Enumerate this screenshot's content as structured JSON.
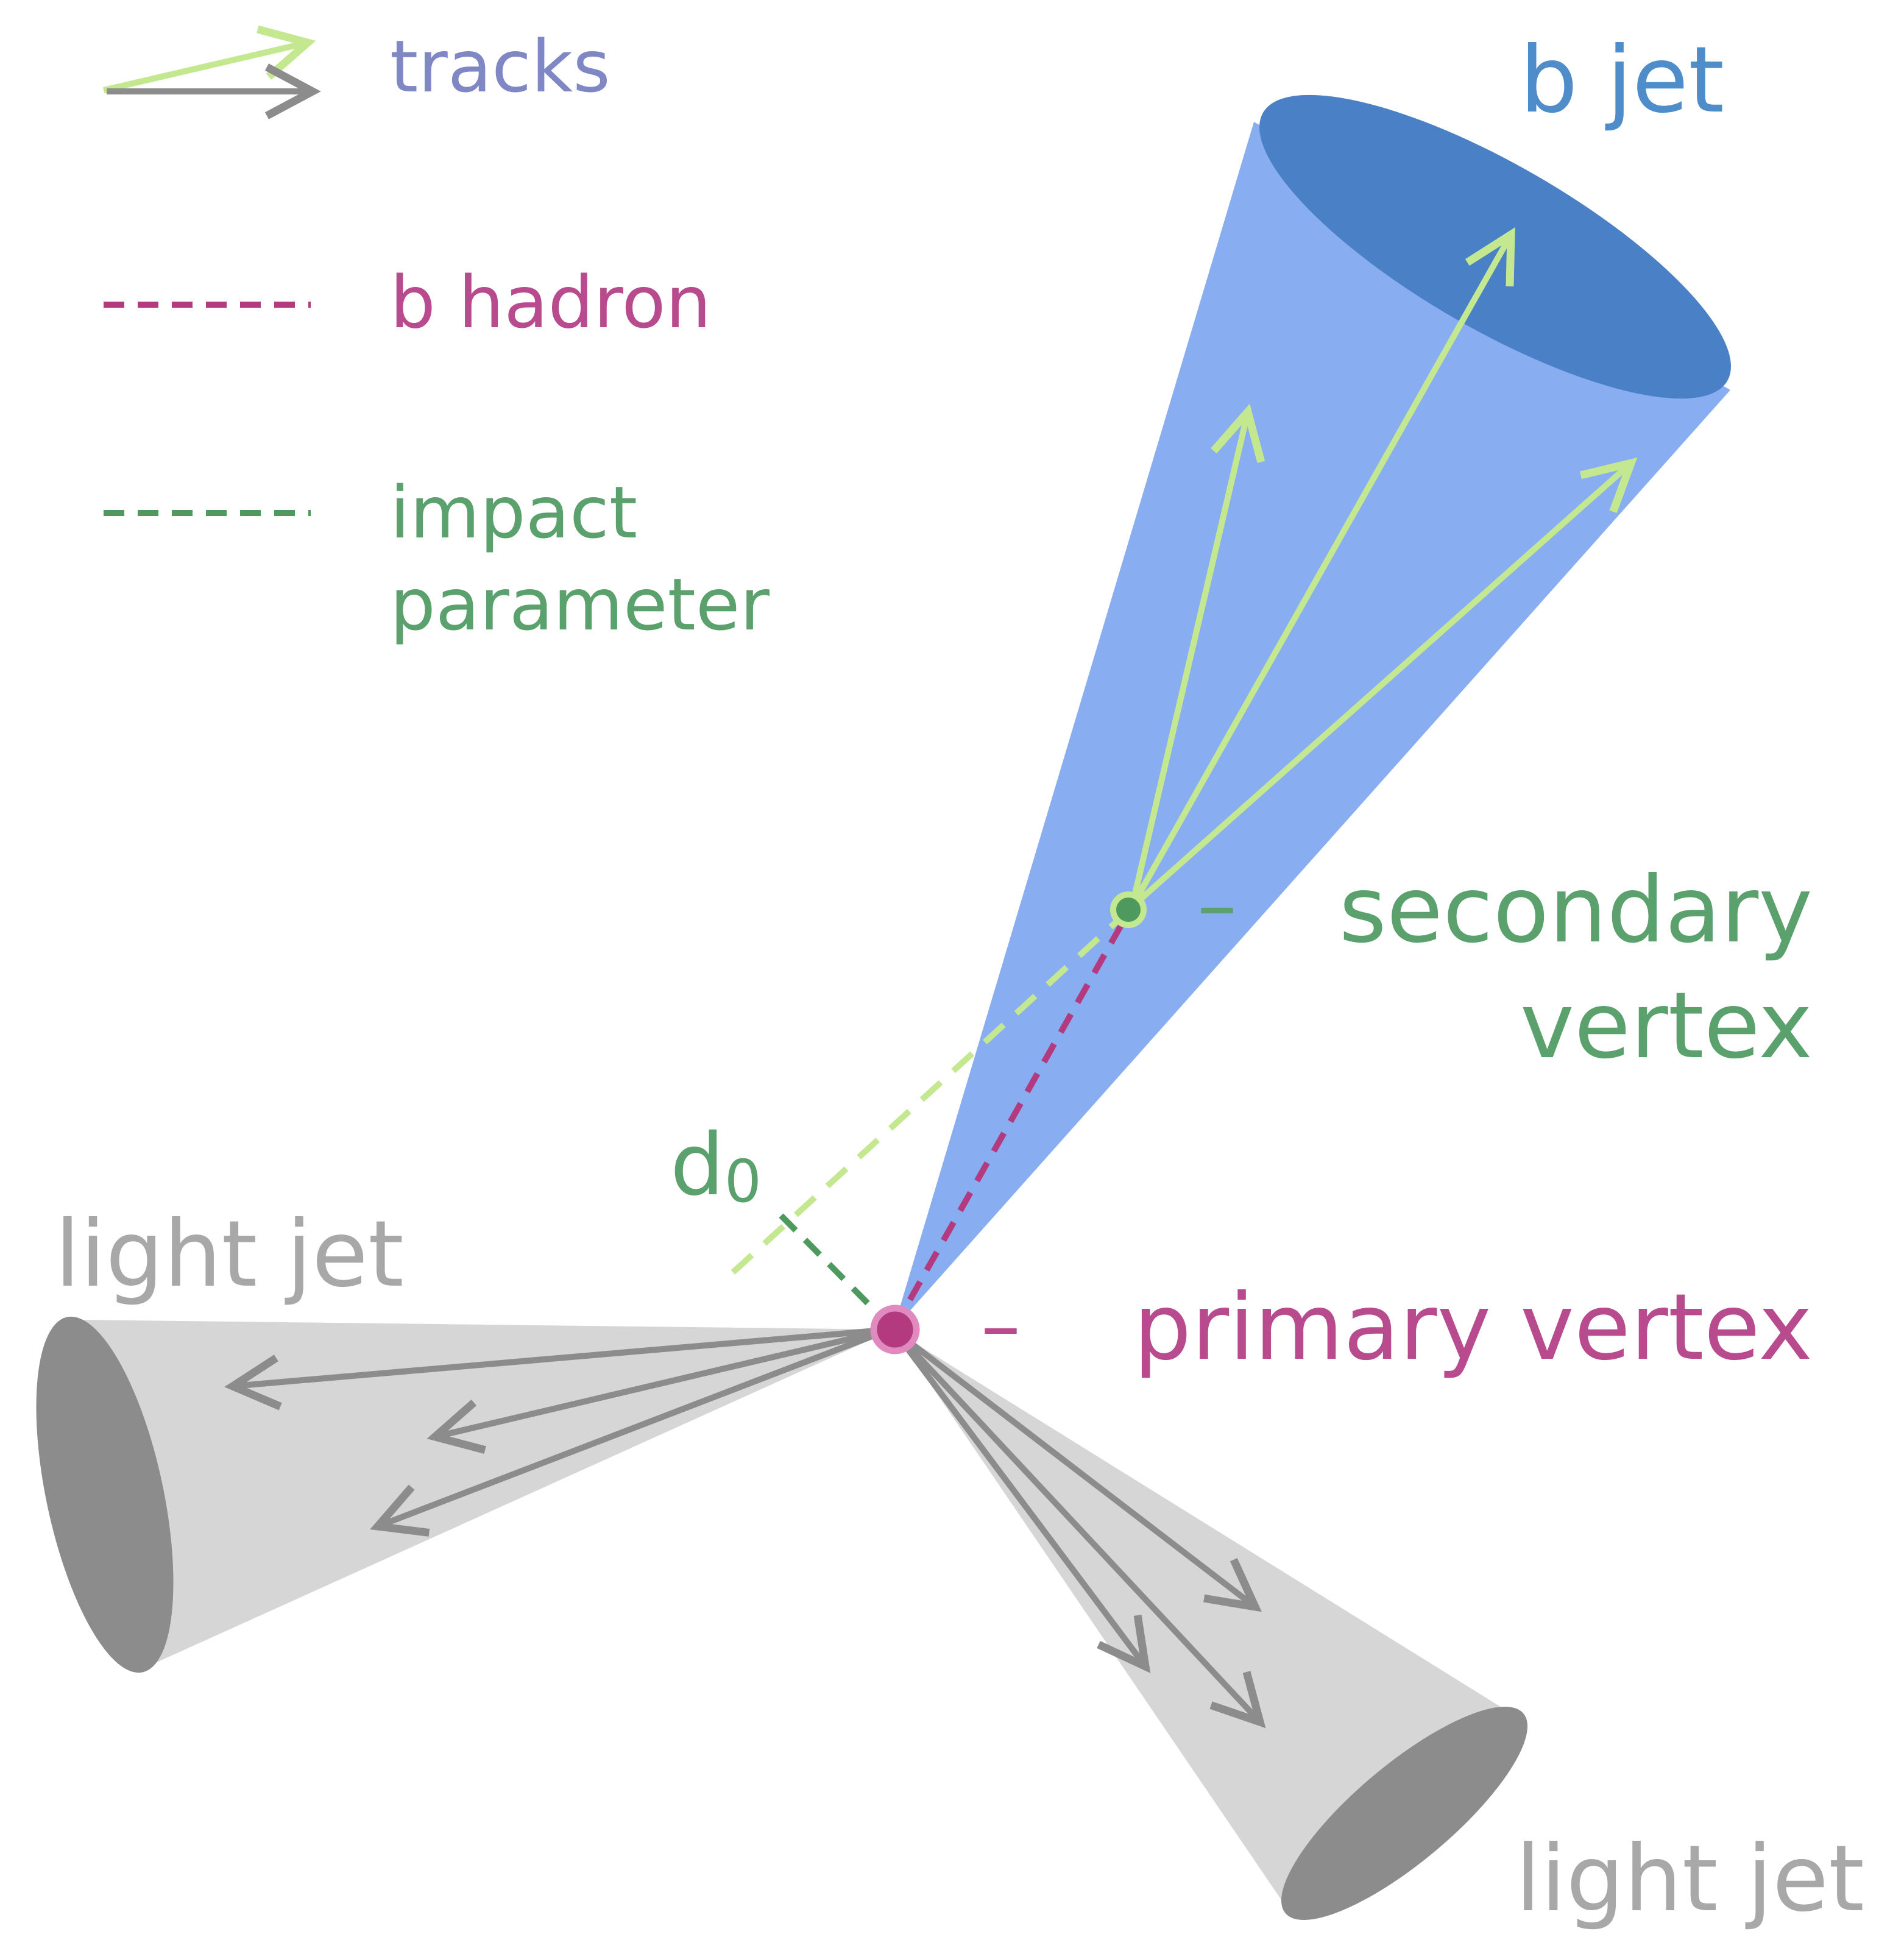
{
  "legend": {
    "tracks": "tracks",
    "b_hadron": "b hadron",
    "impact_line1": "impact",
    "impact_line2": "parameter"
  },
  "labels": {
    "b_jet": "b jet",
    "secondary_dash": "–",
    "secondary_line1": "secondary",
    "secondary_line2": "vertex",
    "primary_dash": "–",
    "primary_vertex": "primary vertex",
    "d0": "d",
    "d0_sub": "0",
    "light_jet_left": "light jet",
    "light_jet_right": "light jet"
  },
  "colors": {
    "b_jet_cone": "#88adf0",
    "b_jet_end": "#4a80c6",
    "b_jet_text": "#4f8cca",
    "light_cone": "#d6d6d6",
    "light_end": "#8c8c8c",
    "light_text": "#a8a8a8",
    "track_green": "#c4e890",
    "track_gray": "#8c8c8c",
    "hadron": "#b43a7f",
    "hadron_text": "#b84a8e",
    "impact": "#4e9a5e",
    "impact_text": "#5aa16d",
    "tracks_text": "#7f87c4"
  }
}
